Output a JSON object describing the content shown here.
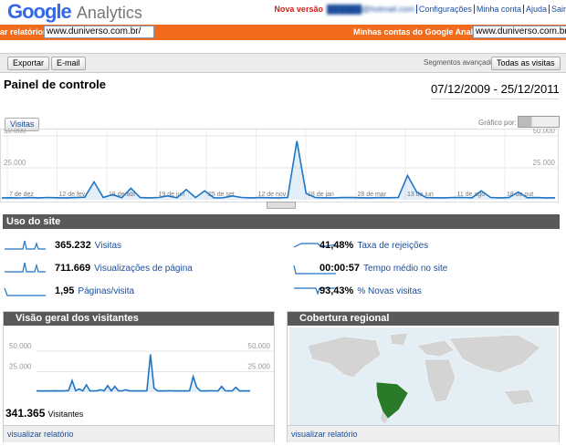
{
  "header": {
    "logo_google": "Google",
    "logo_analytics": "Analytics",
    "links": [
      "Nova versão",
      "██████@hotmail.com",
      "Configurações",
      "Minha conta",
      "Ajuda",
      "Sair"
    ]
  },
  "account_bar": {
    "left_label": "ar relatórios:",
    "left_select": "www.duniverso.com.br/",
    "right_label": "Minhas contas do Google Analytics:",
    "right_select": "www.duniverso.com.br"
  },
  "toolbar": {
    "export": "Exportar",
    "email": "E-mail",
    "segments_label": "Segmentos avançados:",
    "segments_select": "Todas as visitas"
  },
  "page_title": "Painel de controle",
  "date_range": "07/12/2009 - 25/12/2011",
  "main_chart": {
    "type": "line",
    "metric_button": "Visitas",
    "graph_by": "Gráfico por:",
    "color": "#1f74c4",
    "ylim": [
      0,
      50000
    ],
    "yticks": [
      {
        "value": 25000,
        "label": "25.000"
      },
      {
        "value": 50000,
        "label": "50.000"
      }
    ],
    "x_labels": [
      "7 de dez",
      "12 de fev",
      "18 de abr",
      "19 de jun",
      "25 de set",
      "12 de nov",
      "18 de jan",
      "28 de mar",
      "13 de jun",
      "11 de ago",
      "18 de out"
    ],
    "values": [
      1500,
      1600,
      1400,
      1700,
      1500,
      1800,
      1600,
      1500,
      1700,
      2000,
      14000,
      1800,
      4000,
      1600,
      9000,
      1700,
      1500,
      1800,
      3000,
      1600,
      8000,
      1700,
      7000,
      1500,
      1600,
      3000,
      1800,
      1500,
      1700,
      1600,
      1500,
      1800,
      46000,
      5000,
      1700,
      1600,
      1500,
      1800,
      1700,
      1600,
      1500,
      1700,
      1600,
      1800,
      19000,
      6000,
      1700,
      1600,
      1500,
      1800,
      1700,
      1600,
      7000,
      1800,
      1500,
      1700,
      6000,
      1600,
      1700,
      1500,
      1600
    ]
  },
  "site_usage": {
    "title": "Uso do site",
    "metrics": [
      {
        "value": "365.232",
        "label": "Visitas"
      },
      {
        "value": "711.669",
        "label": "Visualizações de página"
      },
      {
        "value": "1,95",
        "label": "Páginas/visita"
      },
      {
        "value": "41,48%",
        "label": "Taxa de rejeições"
      },
      {
        "value": "00:00:57",
        "label": "Tempo médio no site"
      },
      {
        "value": "93,43%",
        "label": "% Novas visitas"
      }
    ]
  },
  "visitors_panel": {
    "title": "Visão geral dos visitantes",
    "total": "341.365",
    "total_label": "Visitantes",
    "link": "visualizar relatório"
  },
  "regional_panel": {
    "title": "Cobertura regional",
    "link": "visualizar relatório"
  }
}
